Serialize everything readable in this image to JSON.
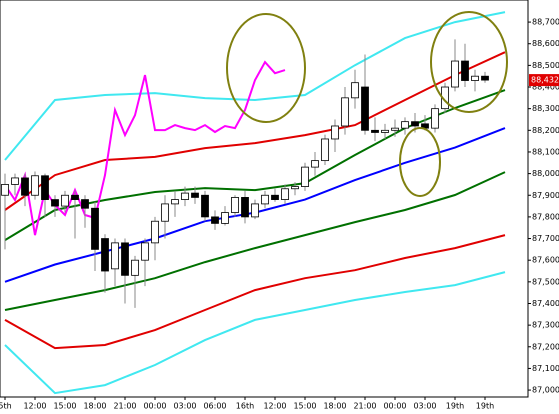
{
  "chart_data": {
    "type": "candlestick",
    "categories": [
      "5th",
      null,
      null,
      "12:00",
      null,
      null,
      "15:00",
      null,
      null,
      "18:00",
      null,
      null,
      "21:00",
      null,
      null,
      "00:00",
      null,
      null,
      "03:00",
      null,
      null,
      "06:00",
      null,
      null,
      "16th",
      null,
      null,
      "12:00",
      null,
      null,
      "15:00",
      null,
      null,
      "18:00",
      null,
      null,
      "21:00",
      null,
      null,
      "00:00",
      null,
      null,
      "03:00",
      null,
      null,
      "19th",
      null,
      null,
      "19th"
    ],
    "open": [
      87900,
      87950,
      87980,
      87900,
      87990,
      87880,
      87850,
      87900,
      87880,
      87840,
      87700,
      87560,
      87680,
      87530,
      87600,
      87680,
      87780,
      87860,
      87880,
      87910,
      87900,
      87800,
      87770,
      87820,
      87890,
      87800,
      87860,
      87900,
      87880,
      87930,
      87940,
      88030,
      88060,
      88160,
      88220,
      88350,
      88400,
      88200,
      88190,
      88200,
      88210,
      88240,
      88230,
      88210,
      88300,
      88400,
      88520,
      88430,
      88450
    ],
    "high": [
      88000,
      88000,
      88000,
      88010,
      88000,
      87900,
      87920,
      87920,
      87900,
      87870,
      87720,
      87700,
      87700,
      87620,
      87700,
      87800,
      87900,
      87920,
      87940,
      87940,
      87920,
      87830,
      87850,
      87900,
      87920,
      87880,
      87920,
      87930,
      87950,
      87960,
      88050,
      88100,
      88180,
      88250,
      88400,
      88480,
      88550,
      88260,
      88230,
      88250,
      88260,
      88280,
      88270,
      88320,
      88420,
      88620,
      88600,
      88480,
      88470
    ],
    "low": [
      87650,
      87900,
      87850,
      87880,
      87800,
      87800,
      87820,
      87700,
      87750,
      87550,
      87450,
      87480,
      87400,
      87380,
      87480,
      87600,
      87700,
      87800,
      87850,
      87860,
      87780,
      87740,
      87760,
      87800,
      87770,
      87790,
      87840,
      87870,
      87860,
      87900,
      87920,
      87990,
      88040,
      88100,
      88180,
      88300,
      88180,
      88150,
      88160,
      88170,
      88180,
      88190,
      88200,
      88190,
      88280,
      88380,
      88400,
      88380,
      88420
    ],
    "close": [
      87950,
      87980,
      87900,
      87990,
      87880,
      87850,
      87900,
      87880,
      87840,
      87650,
      87550,
      87680,
      87530,
      87600,
      87680,
      87780,
      87860,
      87880,
      87910,
      87890,
      87800,
      87770,
      87820,
      87890,
      87800,
      87860,
      87900,
      87880,
      87930,
      87940,
      88030,
      88060,
      88160,
      88220,
      88350,
      88420,
      88200,
      88190,
      88200,
      88210,
      88240,
      88220,
      88210,
      88300,
      88400,
      88520,
      88430,
      88450,
      88432
    ],
    "last_label": "88,432",
    "series": [
      {
        "color": "#0000ff",
        "x": [
          0,
          5,
          10,
          15,
          20,
          25,
          30,
          35,
          40,
          45,
          50
        ],
        "values": [
          87500,
          87580,
          87640,
          87700,
          87780,
          87820,
          87880,
          87970,
          88050,
          88120,
          88210
        ]
      },
      {
        "color": "#007000",
        "x": [
          0,
          5,
          10,
          15,
          20,
          25,
          30,
          35,
          40,
          45,
          50
        ],
        "values": [
          87693,
          87832,
          87878,
          87915,
          87933,
          87924,
          87956,
          88086,
          88210,
          88303,
          88386
        ]
      },
      {
        "color": "#007000",
        "x": [
          0,
          5,
          10,
          15,
          20,
          25,
          30,
          35,
          40,
          45,
          50
        ],
        "values": [
          87370,
          87416,
          87462,
          87517,
          87591,
          87656,
          87716,
          87776,
          87832,
          87901,
          88007
        ]
      },
      {
        "color": "#e00000",
        "x": [
          0,
          5,
          10,
          15,
          20,
          25,
          30,
          35,
          40,
          45,
          50
        ],
        "values": [
          87832,
          87993,
          88063,
          88077,
          88118,
          88141,
          88178,
          88224,
          88340,
          88455,
          88561
        ]
      },
      {
        "color": "#e00000",
        "x": [
          0,
          5,
          10,
          15,
          20,
          25,
          30,
          35,
          40,
          45,
          50
        ],
        "values": [
          87324,
          87194,
          87208,
          87277,
          87370,
          87462,
          87517,
          87554,
          87610,
          87656,
          87716
        ]
      },
      {
        "color": "#40e8f0",
        "x": [
          0,
          5,
          10,
          15,
          20,
          25,
          30,
          35,
          40,
          45,
          50
        ],
        "values": [
          88063,
          88340,
          88363,
          88372,
          88349,
          88340,
          88363,
          88501,
          88626,
          88700,
          88746
        ]
      },
      {
        "color": "#40e8f0",
        "x": [
          0,
          5,
          10,
          15,
          20,
          25,
          30,
          35,
          40,
          45,
          50
        ],
        "values": [
          87208,
          86986,
          87023,
          87116,
          87231,
          87324,
          87370,
          87416,
          87453,
          87485,
          87545
        ]
      },
      {
        "color": "#ff00ff",
        "x": [
          0,
          1,
          2,
          3,
          4,
          5,
          6,
          7,
          8,
          9,
          10,
          11,
          12,
          13,
          14,
          15,
          16,
          17,
          18,
          19,
          20,
          21,
          22,
          23,
          24,
          25,
          26,
          27,
          28
        ],
        "values": [
          87947,
          87878,
          87993,
          87716,
          87924,
          87855,
          87809,
          87924,
          87809,
          87795,
          87993,
          88294,
          88178,
          88270,
          88455,
          88201,
          88201,
          88224,
          88210,
          88201,
          88224,
          88192,
          88220,
          88210,
          88294,
          88432,
          88515,
          88464,
          88478
        ]
      }
    ],
    "xlim": [
      -0.5,
      52.3
    ],
    "ylim": [
      86968,
      88802
    ],
    "yticks": [
      {
        "value": 88700,
        "label": "88,700"
      },
      {
        "value": 88600,
        "label": "88,600"
      },
      {
        "value": 88500,
        "label": "88,500"
      },
      {
        "value": 88400,
        "label": "88,400"
      },
      {
        "value": 88300,
        "label": "88,300"
      },
      {
        "value": 88200,
        "label": "88,200"
      },
      {
        "value": 88100,
        "label": "88,100"
      },
      {
        "value": 88000,
        "label": "88,000"
      },
      {
        "value": 87900,
        "label": "87,900"
      },
      {
        "value": 87800,
        "label": "87,800"
      },
      {
        "value": 87700,
        "label": "87,700"
      },
      {
        "value": 87600,
        "label": "87,600"
      },
      {
        "value": 87500,
        "label": "87,500"
      },
      {
        "value": 87400,
        "label": "87,400"
      },
      {
        "value": 87300,
        "label": "87,300"
      },
      {
        "value": 87200,
        "label": "87,200"
      },
      {
        "value": 87100,
        "label": "87,100"
      },
      {
        "value": 87000,
        "label": "87,000"
      }
    ]
  }
}
